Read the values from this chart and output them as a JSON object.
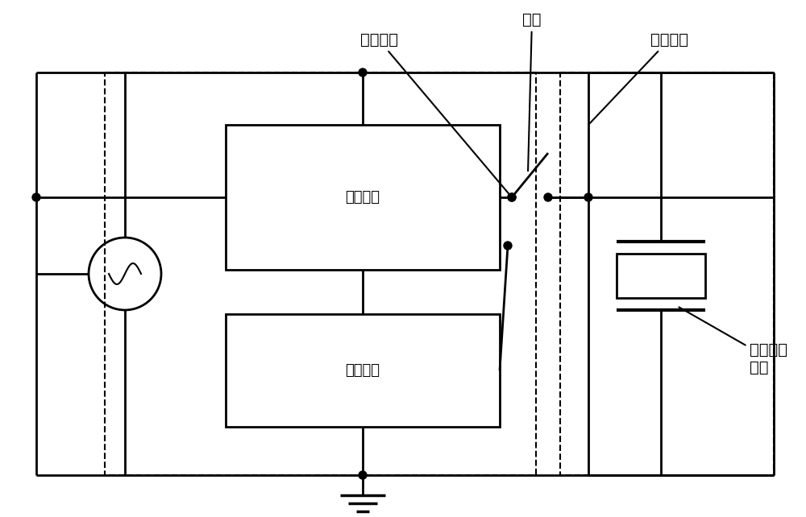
{
  "fig_width": 10.0,
  "fig_height": 6.42,
  "dpi": 100,
  "bg_color": "#ffffff",
  "line_color": "#000000",
  "labels": {
    "switch": "开关",
    "pos2": "第二位置",
    "pos1": "第一位置",
    "micro": "微控制器",
    "resonance": "谐振电路",
    "piezo": "压电陶瓷\n元件"
  },
  "font_size": 13
}
